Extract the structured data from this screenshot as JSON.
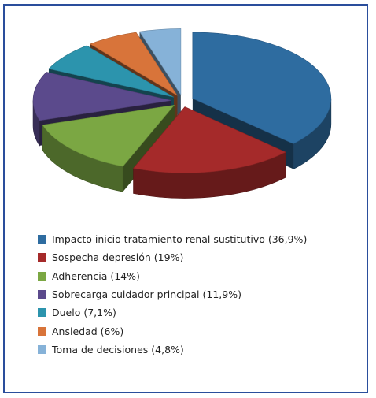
{
  "chart_data": {
    "type": "pie",
    "title": "",
    "exploded_3d": true,
    "legend_position": "bottom",
    "series": [
      {
        "label": "Impacto inicio tratamiento renal sustitutivo (36,9%)",
        "value": 36.9,
        "color": "#2e6ca0"
      },
      {
        "label": "Sospecha depresión (19%)",
        "value": 19.0,
        "color": "#a52a2a"
      },
      {
        "label": "Adherencia (14%)",
        "value": 14.0,
        "color": "#7ba743"
      },
      {
        "label": "Sobrecarga cuidador principal (11,9%)",
        "value": 11.9,
        "color": "#5b4a8c"
      },
      {
        "label": "Duelo (7,1%)",
        "value": 7.1,
        "color": "#2c94ad"
      },
      {
        "label": "Ansiedad (6%)",
        "value": 6.0,
        "color": "#d8743a"
      },
      {
        "label": "Toma de decisiones (4,8%)",
        "value": 4.8,
        "color": "#86b2d8"
      }
    ]
  }
}
